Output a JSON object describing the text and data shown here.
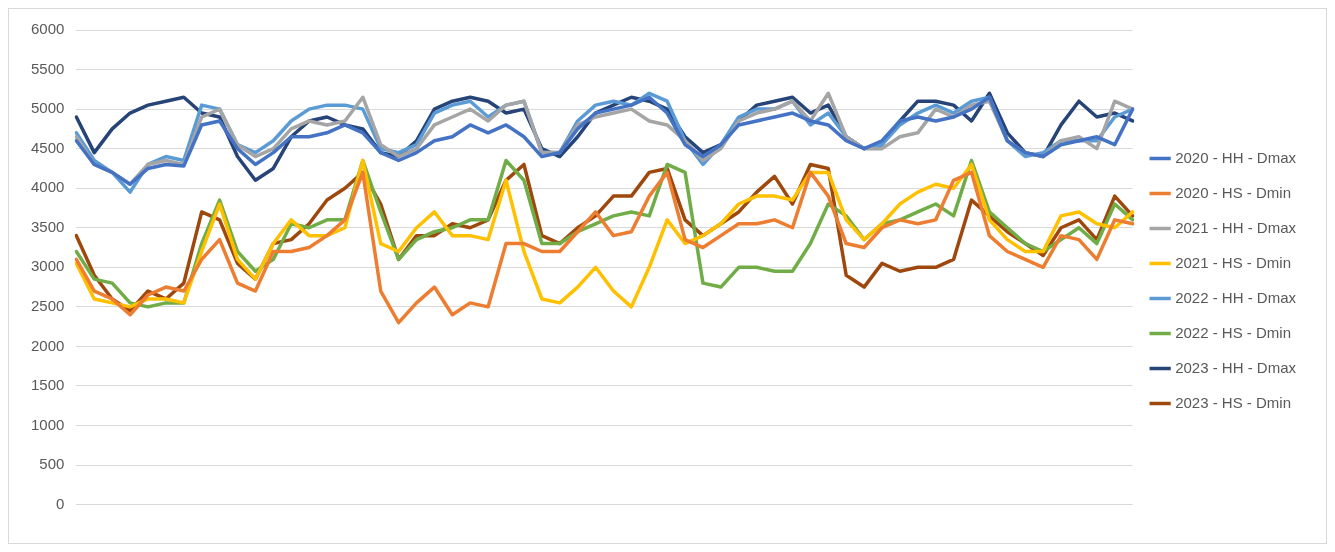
{
  "chart_data": {
    "type": "line",
    "categories": [
      null,
      null,
      null,
      null,
      null,
      null,
      null,
      null,
      null,
      null,
      null,
      null,
      null,
      null,
      null,
      null,
      null,
      null,
      null,
      null,
      null,
      null,
      null,
      null,
      null,
      null,
      null,
      null,
      null,
      null,
      null,
      null,
      null,
      null,
      null,
      null,
      null,
      null,
      null,
      null,
      null,
      null,
      null,
      null,
      null,
      null,
      null,
      null,
      null,
      null,
      null,
      null,
      null,
      null,
      null,
      null,
      null,
      null,
      null,
      null
    ],
    "ylim": [
      0,
      6000
    ],
    "yticks": [
      0,
      500,
      1000,
      1500,
      2000,
      2500,
      3000,
      3500,
      4000,
      4500,
      5000,
      5500,
      6000
    ],
    "grid": "y",
    "legend": "right",
    "marker": "none",
    "line_style": "solid",
    "series": [
      {
        "name": "2020 - HH - Dmax",
        "color": "#4472c4",
        "values": [
          4600,
          4300,
          4200,
          4050,
          4250,
          4300,
          4280,
          4800,
          4850,
          4500,
          4300,
          4450,
          4650,
          4650,
          4700,
          4800,
          4700,
          4450,
          4350,
          4450,
          4600,
          4650,
          4800,
          4700,
          4800,
          4650,
          4400,
          4450,
          4750,
          4950,
          5000,
          5050,
          5150,
          4950,
          4550,
          4400,
          4550,
          4800,
          4850,
          4900,
          4950,
          4850,
          4800,
          4600,
          4500,
          4600,
          4850,
          4900,
          4850,
          4900,
          5000,
          5150,
          4600,
          4450,
          4400,
          4550,
          4600,
          4650,
          4550,
          5000
        ]
      },
      {
        "name": "2020 - HS - Dmin",
        "color": "#ed7d31",
        "values": [
          3100,
          2700,
          2600,
          2400,
          2650,
          2750,
          2700,
          3100,
          3350,
          2800,
          2700,
          3200,
          3200,
          3250,
          3400,
          3600,
          4200,
          2700,
          2300,
          2550,
          2750,
          2400,
          2550,
          2500,
          3300,
          3300,
          3200,
          3200,
          3450,
          3700,
          3400,
          3450,
          3900,
          4200,
          3350,
          3250,
          3400,
          3550,
          3550,
          3600,
          3500,
          4200,
          3900,
          3300,
          3250,
          3500,
          3600,
          3550,
          3600,
          4100,
          4200,
          3400,
          3200,
          3100,
          3000,
          3400,
          3350,
          3100,
          3600,
          3550
        ]
      },
      {
        "name": "2021 - HH - Dmax",
        "color": "#a5a5a5",
        "values": [
          4650,
          4300,
          4200,
          4050,
          4300,
          4350,
          4300,
          4900,
          5000,
          4550,
          4400,
          4500,
          4750,
          4850,
          4800,
          4850,
          5150,
          4550,
          4400,
          4500,
          4800,
          4900,
          5000,
          4850,
          5050,
          5100,
          4450,
          4450,
          4800,
          4900,
          4950,
          5000,
          4850,
          4800,
          4600,
          4350,
          4500,
          4850,
          4950,
          5000,
          5100,
          4850,
          5200,
          4650,
          4500,
          4500,
          4650,
          4700,
          5000,
          4900,
          5050,
          5100,
          4600,
          4450,
          4400,
          4600,
          4650,
          4500,
          5100,
          5000
        ]
      },
      {
        "name": "2021 - HS - Dmin",
        "color": "#ffc000",
        "values": [
          3050,
          2600,
          2550,
          2500,
          2600,
          2600,
          2550,
          3200,
          3800,
          3100,
          2850,
          3300,
          3600,
          3400,
          3400,
          3500,
          4350,
          3300,
          3200,
          3500,
          3700,
          3400,
          3400,
          3350,
          4100,
          3200,
          2600,
          2550,
          2750,
          3000,
          2700,
          2500,
          3000,
          3600,
          3300,
          3400,
          3550,
          3800,
          3900,
          3900,
          3850,
          4200,
          4200,
          3600,
          3350,
          3550,
          3800,
          3950,
          4050,
          4000,
          4300,
          3600,
          3350,
          3200,
          3200,
          3650,
          3700,
          3550,
          3500,
          3700
        ]
      },
      {
        "name": "2022 - HH - Dmax",
        "color": "#5b9bd5",
        "values": [
          4700,
          4350,
          4200,
          3950,
          4300,
          4400,
          4350,
          5050,
          5000,
          4550,
          4450,
          4600,
          4850,
          5000,
          5050,
          5050,
          5000,
          4500,
          4450,
          4550,
          4950,
          5050,
          5100,
          4900,
          5050,
          5100,
          4450,
          4450,
          4850,
          5050,
          5100,
          5050,
          5200,
          5100,
          4600,
          4300,
          4550,
          4900,
          5000,
          5000,
          5100,
          4800,
          4950,
          4650,
          4500,
          4550,
          4800,
          4950,
          5050,
          4950,
          5100,
          5150,
          4600,
          4400,
          4450,
          4600,
          4600,
          4600,
          4900,
          5000
        ]
      },
      {
        "name": "2022 - HS - Dmin",
        "color": "#70ad47",
        "values": [
          3200,
          2850,
          2800,
          2550,
          2500,
          2550,
          2550,
          3300,
          3850,
          3200,
          2950,
          3100,
          3550,
          3500,
          3600,
          3600,
          4350,
          3700,
          3100,
          3350,
          3450,
          3500,
          3600,
          3600,
          4350,
          4100,
          3300,
          3300,
          3450,
          3550,
          3650,
          3700,
          3650,
          4300,
          4200,
          2800,
          2750,
          3000,
          3000,
          2950,
          2950,
          3300,
          3800,
          3650,
          3350,
          3550,
          3600,
          3700,
          3800,
          3650,
          4350,
          3700,
          3500,
          3300,
          3200,
          3350,
          3500,
          3300,
          3800,
          3600
        ]
      },
      {
        "name": "2023 - HH - Dmax",
        "color": "#264478",
        "values": [
          4900,
          4450,
          4750,
          4950,
          5050,
          5100,
          5150,
          4950,
          4900,
          4400,
          4100,
          4250,
          4650,
          4850,
          4900,
          4800,
          4750,
          4450,
          4400,
          4600,
          5000,
          5100,
          5150,
          5100,
          4950,
          5000,
          4500,
          4400,
          4650,
          4950,
          5050,
          5150,
          5100,
          5000,
          4650,
          4450,
          4550,
          4850,
          5050,
          5100,
          5150,
          4950,
          5050,
          4650,
          4500,
          4550,
          4850,
          5100,
          5100,
          5050,
          4850,
          5200,
          4700,
          4450,
          4400,
          4800,
          5100,
          4900,
          4950,
          4850
        ]
      },
      {
        "name": "2023 - HS - Dmin",
        "color": "#9e480e",
        "values": [
          3400,
          2900,
          2600,
          2450,
          2700,
          2600,
          2800,
          3700,
          3600,
          3050,
          2850,
          3300,
          3350,
          3550,
          3850,
          4000,
          4200,
          3800,
          3100,
          3400,
          3400,
          3550,
          3500,
          3600,
          4100,
          4300,
          3400,
          3300,
          3500,
          3650,
          3900,
          3900,
          4200,
          4250,
          3600,
          3400,
          3550,
          3700,
          3950,
          4150,
          3800,
          4300,
          4250,
          2900,
          2750,
          3050,
          2950,
          3000,
          3000,
          3100,
          3850,
          3650,
          3450,
          3300,
          3150,
          3500,
          3600,
          3350,
          3900,
          3650
        ]
      }
    ]
  }
}
